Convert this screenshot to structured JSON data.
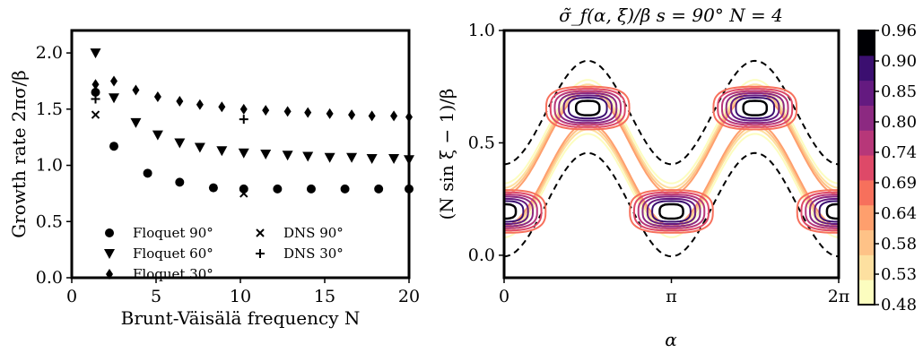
{
  "chart_data": [
    {
      "type": "scatter",
      "xlabel": "Brunt-Väisälä frequency N",
      "ylabel": "Growth rate 2πσ/β",
      "xlim": [
        0,
        20
      ],
      "ylim": [
        0,
        2.2
      ],
      "xticks": [
        "0",
        "5",
        "10",
        "15",
        "20"
      ],
      "yticks": [
        "0.0",
        "0.5",
        "1.0",
        "1.5",
        "2.0"
      ],
      "legend_position": "lower-left",
      "grid": false,
      "series": [
        {
          "name": "Floquet 90°",
          "marker": "circle",
          "x": [
            1.41,
            2.5,
            4.5,
            6.4,
            8.4,
            10.2,
            12.2,
            14.2,
            16.2,
            18.2,
            20
          ],
          "y": [
            1.65,
            1.17,
            0.93,
            0.85,
            0.8,
            0.79,
            0.79,
            0.79,
            0.79,
            0.79,
            0.79
          ]
        },
        {
          "name": "Floquet 60°",
          "marker": "triangle-down",
          "x": [
            1.41,
            2.5,
            3.8,
            5.1,
            6.4,
            7.6,
            8.9,
            10.2,
            11.5,
            12.8,
            14.0,
            15.3,
            16.6,
            17.8,
            19.1,
            20
          ],
          "y": [
            2.0,
            1.6,
            1.38,
            1.27,
            1.2,
            1.16,
            1.13,
            1.11,
            1.1,
            1.09,
            1.08,
            1.07,
            1.07,
            1.06,
            1.06,
            1.05
          ]
        },
        {
          "name": "Floquet 30°",
          "marker": "diamond",
          "x": [
            1.41,
            2.5,
            3.8,
            5.1,
            6.4,
            7.6,
            8.9,
            10.2,
            11.5,
            12.8,
            14.0,
            15.3,
            16.6,
            17.8,
            19.1,
            20
          ],
          "y": [
            1.72,
            1.75,
            1.67,
            1.61,
            1.57,
            1.54,
            1.52,
            1.5,
            1.49,
            1.48,
            1.47,
            1.46,
            1.45,
            1.44,
            1.44,
            1.43
          ]
        },
        {
          "name": "DNS 90°",
          "marker": "x",
          "x": [
            1.41,
            10.2
          ],
          "y": [
            1.45,
            0.75
          ]
        },
        {
          "name": "DNS 30°",
          "marker": "plus",
          "x": [
            1.41,
            10.2
          ],
          "y": [
            1.59,
            1.41
          ]
        }
      ]
    },
    {
      "type": "contour",
      "title": "σ̃_f(α, ξ)/β     s = 90°    N = 4",
      "xlabel": "α",
      "ylabel": "(N sin ξ − 1)/β",
      "xlim": [
        0,
        6.2832
      ],
      "ylim": [
        -0.1,
        1.0
      ],
      "xticks": [
        "0",
        "π",
        "2π"
      ],
      "yticks": [
        "0.0",
        "0.5",
        "1.0"
      ],
      "colorbar_ticks": [
        "0.96",
        "0.90",
        "0.85",
        "0.80",
        "0.74",
        "0.69",
        "0.64",
        "0.58",
        "0.53",
        "0.48"
      ],
      "colorbar_colors": [
        "#fcfdbf",
        "#fde0a0",
        "#fec287",
        "#fe9f6d",
        "#f7705c",
        "#de4968",
        "#b73779",
        "#8c2981",
        "#641a80",
        "#3b0f70",
        "#000004"
      ],
      "levels": [
        0.48,
        0.53,
        0.58,
        0.64,
        0.69,
        0.74,
        0.8,
        0.85,
        0.9,
        0.96
      ],
      "dashed_boundary": true
    }
  ]
}
